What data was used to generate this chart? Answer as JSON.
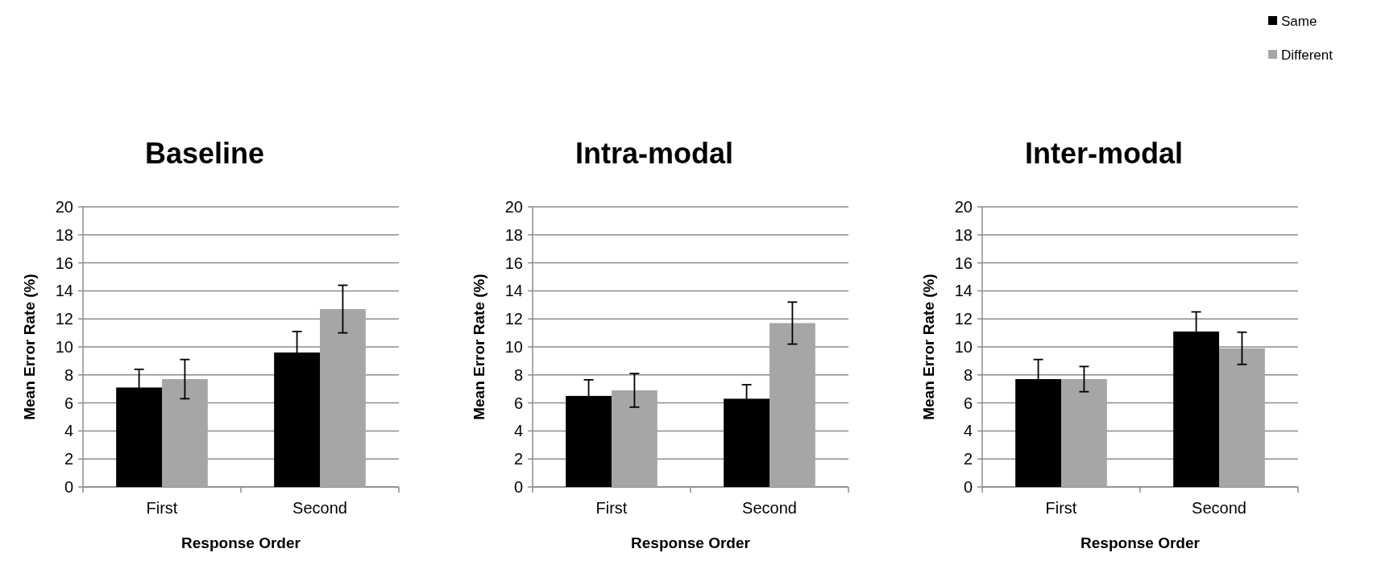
{
  "chart_data": [
    {
      "type": "bar",
      "title": "Baseline",
      "xlabel": "Response Order",
      "ylabel": "Mean Error Rate (%)",
      "categories": [
        "First",
        "Second"
      ],
      "ylim": [
        0,
        20
      ],
      "yticks": [
        0,
        2,
        4,
        6,
        8,
        10,
        12,
        14,
        16,
        18,
        20
      ],
      "grid": "y",
      "legend": false,
      "series": [
        {
          "color": "#000000",
          "values": [
            7.1,
            9.6
          ],
          "errors": [
            1.3,
            1.5
          ]
        },
        {
          "color": "#a6a6a6",
          "values": [
            7.7,
            12.7
          ],
          "errors": [
            1.4,
            1.7
          ]
        }
      ]
    },
    {
      "type": "bar",
      "title": "Intra-modal",
      "xlabel": "Response Order",
      "ylabel": "Mean Error Rate (%)",
      "categories": [
        "First",
        "Second"
      ],
      "ylim": [
        0,
        20
      ],
      "yticks": [
        0,
        2,
        4,
        6,
        8,
        10,
        12,
        14,
        16,
        18,
        20
      ],
      "grid": "y",
      "legend": false,
      "series": [
        {
          "color": "#000000",
          "values": [
            6.5,
            6.3
          ],
          "errors": [
            1.15,
            1.0
          ]
        },
        {
          "color": "#a6a6a6",
          "values": [
            6.9,
            11.7
          ],
          "errors": [
            1.2,
            1.5
          ]
        }
      ]
    },
    {
      "type": "bar",
      "title": "Inter-modal",
      "xlabel": "Response Order",
      "ylabel": "Mean Error Rate (%)",
      "categories": [
        "First",
        "Second"
      ],
      "ylim": [
        0,
        20
      ],
      "yticks": [
        0,
        2,
        4,
        6,
        8,
        10,
        12,
        14,
        16,
        18,
        20
      ],
      "grid": "y",
      "legend": "top right",
      "series": [
        {
          "name": "Same",
          "color": "#000000",
          "values": [
            7.7,
            11.1
          ],
          "errors": [
            1.4,
            1.4
          ]
        },
        {
          "name": "Different",
          "color": "#a6a6a6",
          "values": [
            7.7,
            9.9
          ],
          "errors": [
            0.9,
            1.15
          ]
        }
      ]
    }
  ]
}
